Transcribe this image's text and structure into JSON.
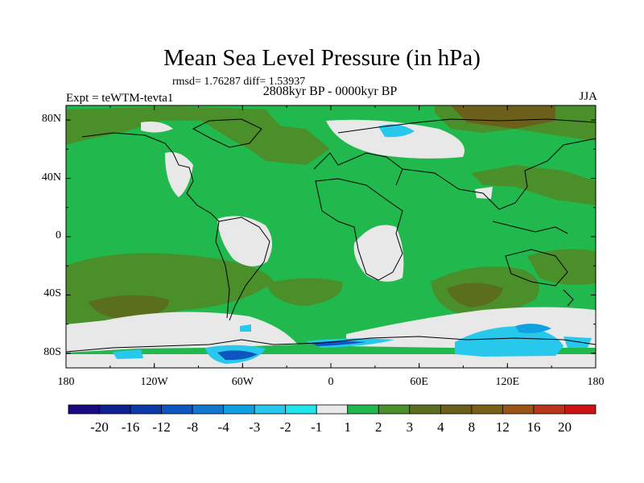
{
  "title": "Mean Sea Level Pressure (in hPa)",
  "stats": "rmsd= 1.76287 diff= 1.53937",
  "period": "2808kyr BP - 0000kyr BP",
  "experiment": "Expt = teWTM-tevta1",
  "season": "JJA",
  "lat_ticks": [
    "80N",
    "40N",
    "0",
    "40S",
    "80S"
  ],
  "lon_ticks": [
    "180",
    "120W",
    "60W",
    "0",
    "60E",
    "120E",
    "180"
  ],
  "colorbar": {
    "colors": [
      "#1a0a80",
      "#102090",
      "#0c3aa8",
      "#0d56c0",
      "#1476cc",
      "#0ea0e0",
      "#27c8ec",
      "#20e4ec",
      "#e8e8e8",
      "#21b84d",
      "#4a8f2a",
      "#5b6e1e",
      "#6b5f1a",
      "#7a5f16",
      "#9a5418",
      "#b8341a",
      "#cc1414"
    ],
    "labels": [
      "-20",
      "-16",
      "-12",
      "-8",
      "-4",
      "-3",
      "-2",
      "-1",
      "1",
      "2",
      "3",
      "4",
      "8",
      "12",
      "16",
      "20"
    ]
  }
}
